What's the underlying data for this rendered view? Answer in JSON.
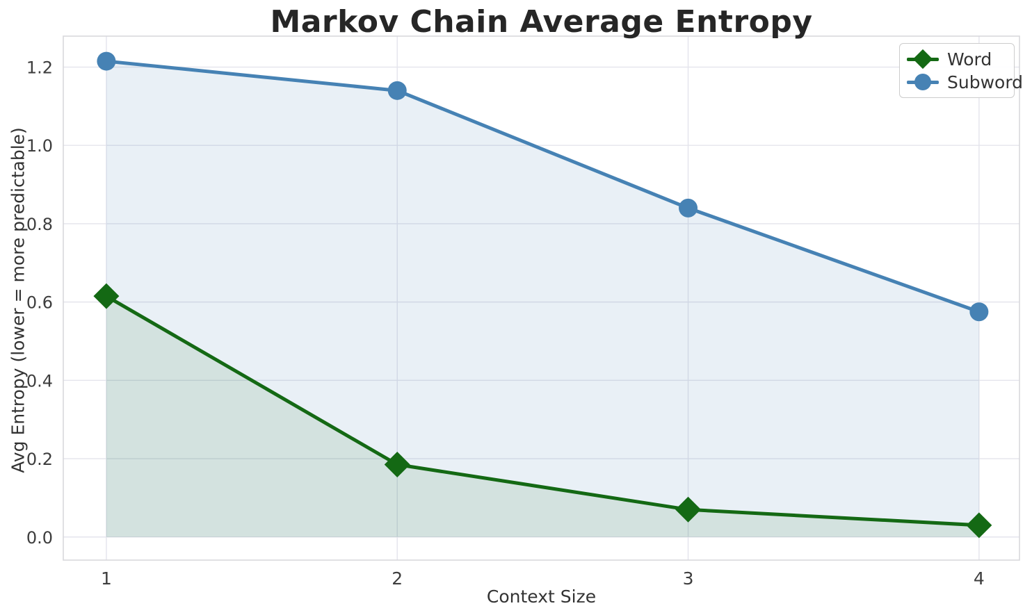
{
  "chart_data": {
    "type": "line",
    "title": "Markov Chain Average Entropy",
    "xlabel": "Context Size",
    "ylabel": "Avg Entropy (lower = more predictable)",
    "x": [
      1,
      2,
      3,
      4
    ],
    "series": [
      {
        "name": "Word",
        "marker": "diamond",
        "color": "#146914",
        "fill_color": "rgba(20,105,20,0.10)",
        "values": [
          0.615,
          0.185,
          0.07,
          0.03
        ]
      },
      {
        "name": "Subword",
        "marker": "circle",
        "color": "#4682b4",
        "fill_color": "rgba(70,130,180,0.12)",
        "values": [
          1.215,
          1.14,
          0.84,
          0.575
        ]
      }
    ],
    "xticks": [
      1,
      2,
      3,
      4
    ],
    "yticks": [
      0.0,
      0.2,
      0.4,
      0.6,
      0.8,
      1.0,
      1.2
    ],
    "ytick_labels": [
      "0.0",
      "0.2",
      "0.4",
      "0.6",
      "0.8",
      "1.0",
      "1.2"
    ],
    "xtick_labels": [
      "1",
      "2",
      "3",
      "4"
    ],
    "xlim": [
      0.852,
      4.139
    ],
    "ylim": [
      -0.059,
      1.279
    ],
    "grid": true,
    "legend_position": "upper right",
    "area_fill": true
  },
  "style_colors": {
    "grid": "#e4e4ec",
    "spine": "#d8d8dc",
    "tick_text": "#3d3d3d",
    "plot_background": "#ffffff"
  }
}
